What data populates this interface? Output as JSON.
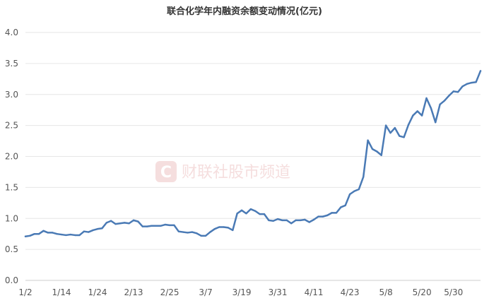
{
  "chart_data": {
    "type": "line",
    "title": "联合化学年内融资余额变动情况(亿元)",
    "xlabel": "",
    "ylabel": "",
    "ylim": [
      0,
      4
    ],
    "yticks": [
      "0.0",
      "0.5",
      "1.0",
      "1.5",
      "2.0",
      "2.5",
      "3.0",
      "3.5",
      "4.0"
    ],
    "xticks": [
      "1/2",
      "1/14",
      "1/24",
      "2/13",
      "2/25",
      "3/7",
      "3/19",
      "3/31",
      "4/11",
      "4/23",
      "5/8",
      "5/20",
      "5/30"
    ],
    "grid": true,
    "legend": "none",
    "line_color": "#4a7ab5",
    "series": [
      {
        "values": [
          0.71,
          0.72,
          0.75,
          0.75,
          0.8,
          0.77,
          0.77,
          0.75,
          0.74,
          0.73,
          0.74,
          0.73,
          0.73,
          0.79,
          0.78,
          0.81,
          0.83,
          0.84,
          0.93,
          0.96,
          0.91,
          0.92,
          0.93,
          0.92,
          0.97,
          0.95,
          0.87,
          0.87,
          0.88,
          0.88,
          0.88,
          0.9,
          0.89,
          0.89,
          0.79,
          0.78,
          0.77,
          0.78,
          0.76,
          0.72,
          0.72,
          0.78,
          0.83,
          0.86,
          0.86,
          0.85,
          0.81,
          1.08,
          1.13,
          1.08,
          1.15,
          1.12,
          1.07,
          1.07,
          0.97,
          0.96,
          0.99,
          0.97,
          0.97,
          0.92,
          0.97,
          0.97,
          0.98,
          0.94,
          0.98,
          1.03,
          1.03,
          1.05,
          1.09,
          1.09,
          1.18,
          1.21,
          1.39,
          1.44,
          1.47,
          1.67,
          2.26,
          2.12,
          2.08,
          2.02,
          2.5,
          2.38,
          2.46,
          2.33,
          2.31,
          2.51,
          2.66,
          2.73,
          2.66,
          2.94,
          2.78,
          2.55,
          2.84,
          2.9,
          2.98,
          3.05,
          3.04,
          3.13,
          3.17,
          3.19,
          3.2,
          3.38
        ]
      }
    ]
  },
  "watermark": {
    "glyph": "C",
    "text": "财联社股市频道"
  }
}
